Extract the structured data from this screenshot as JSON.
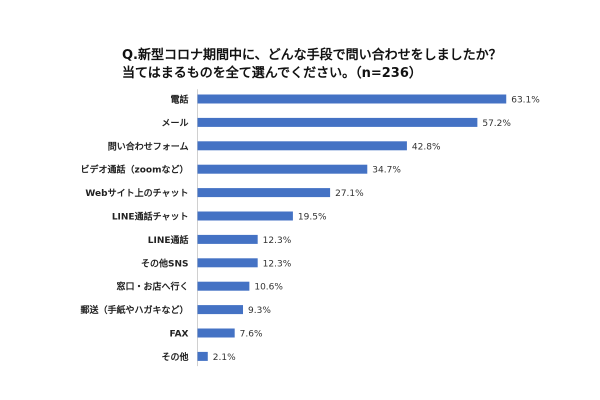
{
  "title": {
    "line1": "Q.新型コロナ期間中に、どんな手段で問い合わせをしましたか？",
    "line2": "当てはまるものを全て選んでください。（n=236）"
  },
  "chart_data": {
    "type": "bar",
    "orientation": "horizontal",
    "categories": [
      "電話",
      "メール",
      "問い合わせフォーム",
      "ビデオ通話（zoomなど）",
      "Webサイト上のチャット",
      "LINE通話チャット",
      "LINE通話",
      "その他SNS",
      "窓口・お店へ行く",
      "郵送（手紙やハガキなど）",
      "FAX",
      "その他"
    ],
    "values": [
      63.1,
      57.2,
      42.8,
      34.7,
      27.1,
      19.5,
      12.3,
      12.3,
      10.6,
      9.3,
      7.6,
      2.1
    ],
    "value_labels": [
      "63.1%",
      "57.2%",
      "42.8%",
      "34.7%",
      "27.1%",
      "19.5%",
      "12.3%",
      "12.3%",
      "10.6%",
      "9.3%",
      "7.6%",
      "2.1%"
    ],
    "xlim": [
      0,
      70
    ],
    "bar_color": "#4472C4",
    "grid": false
  }
}
